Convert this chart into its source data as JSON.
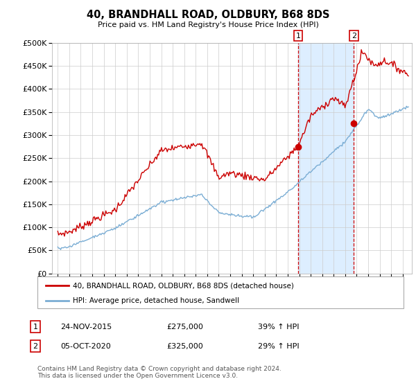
{
  "title": "40, BRANDHALL ROAD, OLDBURY, B68 8DS",
  "subtitle": "Price paid vs. HM Land Registry's House Price Index (HPI)",
  "red_label": "40, BRANDHALL ROAD, OLDBURY, B68 8DS (detached house)",
  "blue_label": "HPI: Average price, detached house, Sandwell",
  "annotation1": {
    "num": "1",
    "date": "24-NOV-2015",
    "price": "£275,000",
    "pct": "39% ↑ HPI"
  },
  "annotation2": {
    "num": "2",
    "date": "05-OCT-2020",
    "price": "£325,000",
    "pct": "29% ↑ HPI"
  },
  "footer": "Contains HM Land Registry data © Crown copyright and database right 2024.\nThis data is licensed under the Open Government Licence v3.0.",
  "ylim": [
    0,
    500000
  ],
  "yticks": [
    0,
    50000,
    100000,
    150000,
    200000,
    250000,
    300000,
    350000,
    400000,
    450000,
    500000
  ],
  "red_color": "#cc0000",
  "blue_color": "#7aadd4",
  "shade_color": "#ddeeff",
  "vline_color": "#cc0000",
  "marker1_x": 2015.9,
  "marker1_y": 275000,
  "marker2_x": 2020.75,
  "marker2_y": 325000,
  "vline1_x": 2015.9,
  "vline2_x": 2020.75,
  "xlim_left": 1994.5,
  "xlim_right": 2025.8
}
